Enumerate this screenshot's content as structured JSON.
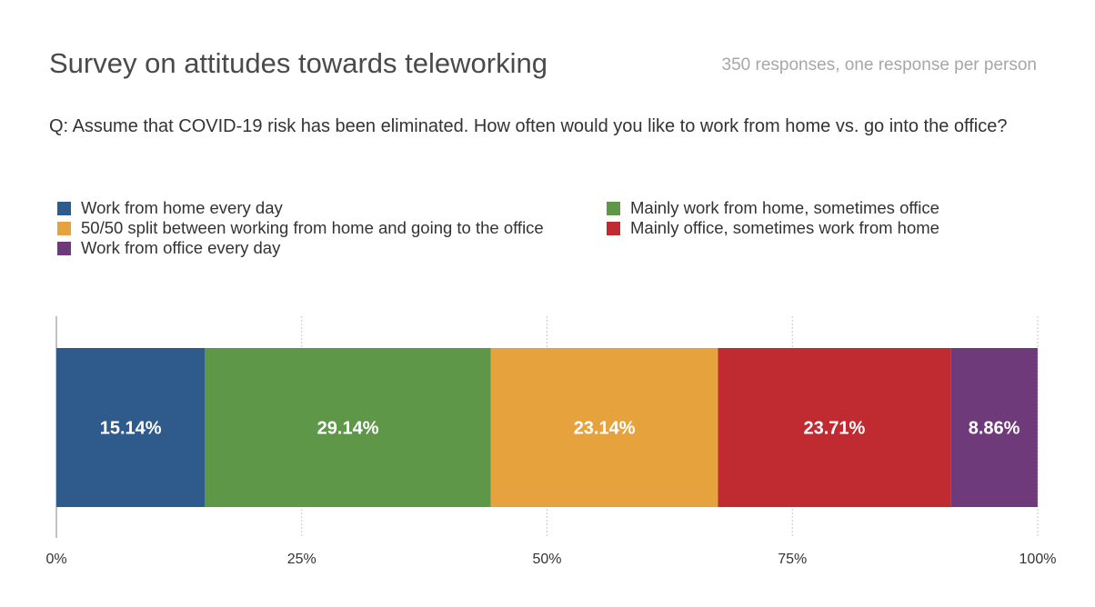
{
  "header": {
    "title": "Survey on attitudes towards teleworking",
    "subtitle": "350 responses, one response per person",
    "question": "Q: Assume that COVID-19 risk has been eliminated. How often would you like to work from home vs. go into the office?"
  },
  "chart_data": {
    "type": "bar",
    "orientation": "horizontal",
    "stacked": true,
    "title": "Survey on attitudes towards teleworking",
    "subtitle": "350 responses, one response per person",
    "xlabel": "",
    "ylabel": "",
    "xlim": [
      0,
      100
    ],
    "x_ticks": [
      "0%",
      "25%",
      "50%",
      "75%",
      "100%"
    ],
    "grid": true,
    "legend_position": "top",
    "series": [
      {
        "name": "Work from home every day",
        "value": 15.14,
        "label": "15.14%",
        "color": "#2e5a8c"
      },
      {
        "name": "Mainly work from home, sometimes office",
        "value": 29.14,
        "label": "29.14%",
        "color": "#5e9748"
      },
      {
        "name": "50/50 split between working from home and going to the office",
        "value": 23.14,
        "label": "23.14%",
        "color": "#e6a23c"
      },
      {
        "name": "Mainly office, sometimes work from home",
        "value": 23.71,
        "label": "23.71%",
        "color": "#bf2b30"
      },
      {
        "name": "Work from office every day",
        "value": 8.86,
        "label": "8.86%",
        "color": "#6e3a7a"
      }
    ]
  }
}
